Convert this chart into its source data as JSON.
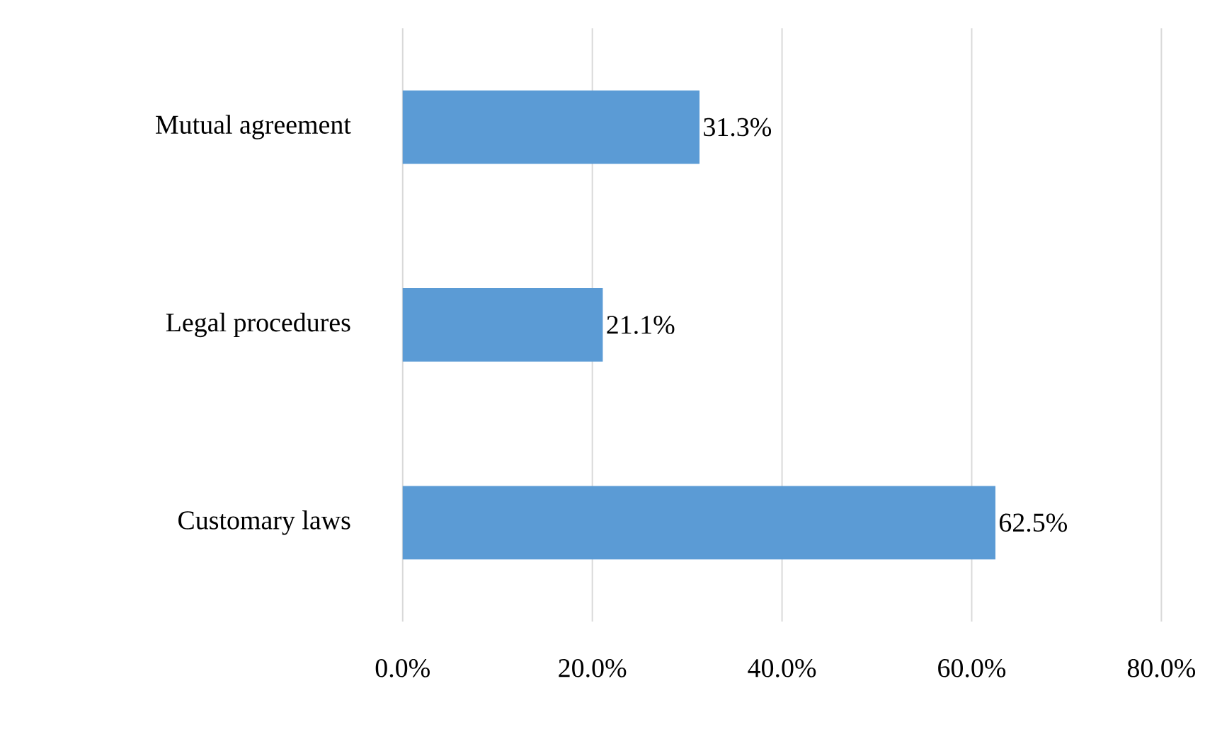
{
  "chart_data": {
    "type": "bar",
    "orientation": "horizontal",
    "categories": [
      "Mutual agreement",
      "Legal procedures",
      "Customary laws"
    ],
    "values": [
      31.3,
      21.1,
      62.5
    ],
    "value_labels": [
      "31.3%",
      "21.1%",
      "62.5%"
    ],
    "color": "#5b9bd5",
    "xlim": [
      0,
      80
    ],
    "xticks": [
      {
        "value": 0,
        "label": "0.0%"
      },
      {
        "value": 20,
        "label": "20.0%"
      },
      {
        "value": 40,
        "label": "40.0%"
      },
      {
        "value": 60,
        "label": "60.0%"
      },
      {
        "value": 80,
        "label": "80.0%"
      }
    ],
    "grid": "x"
  }
}
